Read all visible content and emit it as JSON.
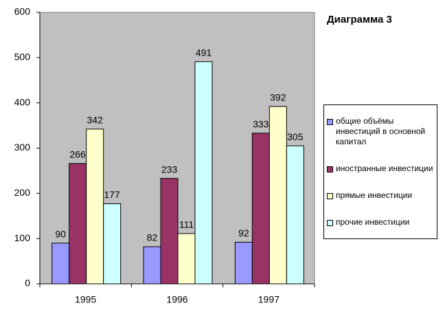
{
  "chart_data": {
    "type": "bar",
    "title": "Диаграмма 3",
    "categories": [
      "1995",
      "1996",
      "1997"
    ],
    "series": [
      {
        "name": "общие объёмы инвестиций в основной капитал",
        "color": "#9999ff",
        "values": [
          90,
          82,
          92
        ]
      },
      {
        "name": "иностранные инвестиции",
        "color": "#993366",
        "values": [
          266,
          233,
          333
        ]
      },
      {
        "name": "прямые инвестиции",
        "color": "#ffffcc",
        "values": [
          342,
          111,
          392
        ]
      },
      {
        "name": "прочие инвестиции",
        "color": "#ccffff",
        "values": [
          177,
          491,
          305
        ]
      }
    ],
    "ylim": [
      0,
      600
    ],
    "yticks": [
      0,
      100,
      200,
      300,
      400,
      500,
      600
    ],
    "grid": false,
    "plot_background": "#c0c0c0",
    "legend": "right"
  }
}
